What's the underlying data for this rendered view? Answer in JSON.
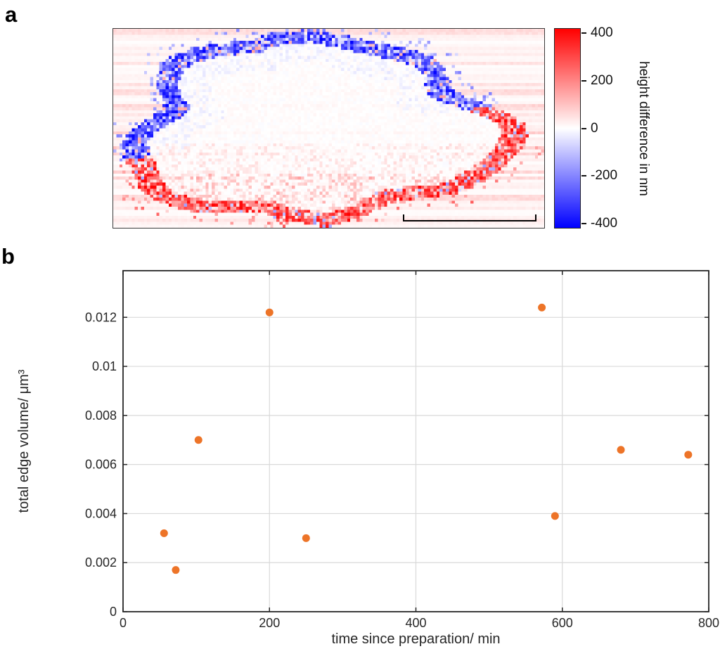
{
  "panel_a": {
    "label": "a",
    "colorbar": {
      "label": "height difference in nm"
    }
  },
  "panel_b": {
    "label": "b"
  },
  "chart_data": [
    {
      "type": "heatmap",
      "description": "pixelated height-difference map of a rounded cell-like region; blue band along upper-left edge, red band along lower-right and bottom edge, pale pink background with horizontal scan streaks, scale bar at bottom right",
      "colorbar_label": "height difference in nm",
      "colorbar_ticks": [
        400,
        200,
        0,
        -200,
        -400
      ],
      "value_range": [
        -420,
        420
      ],
      "colormap": {
        "negative": "#0000ff",
        "zero": "#ffffff",
        "positive": "#ff0000"
      }
    },
    {
      "type": "scatter",
      "x": [
        56,
        72,
        103,
        200,
        250,
        572,
        590,
        680,
        772
      ],
      "y": [
        0.0032,
        0.0017,
        0.007,
        0.0122,
        0.003,
        0.0124,
        0.0039,
        0.0066,
        0.0064
      ],
      "xlabel": "time since preparation/ min",
      "ylabel": "total edge volume/ μm³",
      "xlim": [
        0,
        800
      ],
      "ylim": [
        0,
        0.0139
      ],
      "xticks": [
        0,
        200,
        400,
        600,
        800
      ],
      "yticks": [
        0,
        0.002,
        0.004,
        0.006,
        0.008,
        0.01,
        0.012
      ],
      "grid": true,
      "legend": null,
      "marker_color": "#ed7428",
      "grid_color": "#d9d9d9",
      "axis_color": "#262626"
    }
  ]
}
